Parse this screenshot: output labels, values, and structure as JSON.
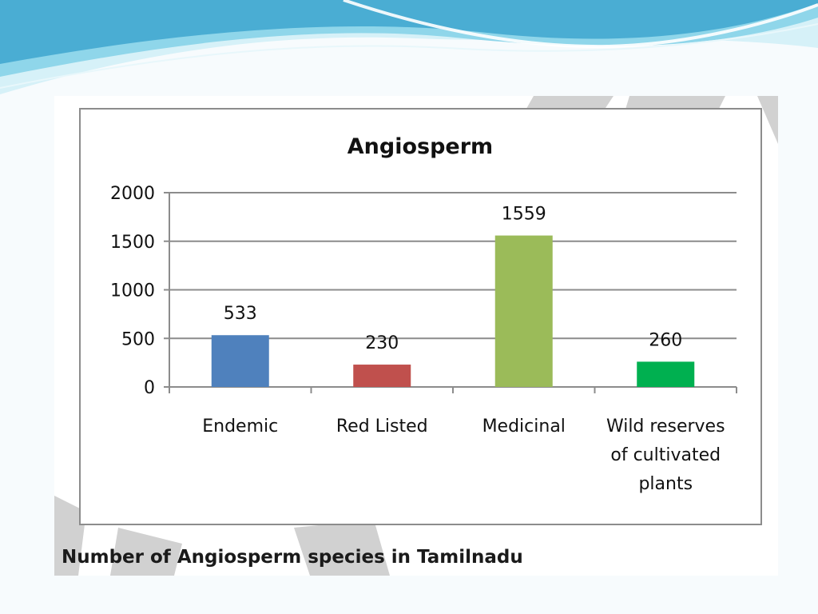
{
  "caption": "Number of Angiosperm species in Tamilnadu",
  "colors": {
    "slide_bg": "#f7fbfd",
    "wave_light": "#cfeef6",
    "wave_mid": "#7fd0e6",
    "wave_dark": "#2f97c4",
    "gridline": "#8c8c8c",
    "frame": "#8c8c8c",
    "watermark": "#c8c8c8"
  },
  "chart_data": {
    "type": "bar",
    "title": "Angiosperm",
    "xlabel": "",
    "ylabel": "",
    "ylim": [
      0,
      2000
    ],
    "yticks": [
      "0",
      "500",
      "1000",
      "1500",
      "2000"
    ],
    "grid": true,
    "legend": "none",
    "categories": [
      [
        "Endemic"
      ],
      [
        "Red Listed"
      ],
      [
        "Medicinal"
      ],
      [
        "Wild reserves",
        "of cultivated",
        "plants"
      ]
    ],
    "values": [
      533,
      230,
      1559,
      260
    ],
    "data_labels": [
      "533",
      "230",
      "1559",
      "260"
    ],
    "bar_colors": [
      "#4f81bd",
      "#c0504d",
      "#9bbb59",
      "#00b050"
    ]
  }
}
